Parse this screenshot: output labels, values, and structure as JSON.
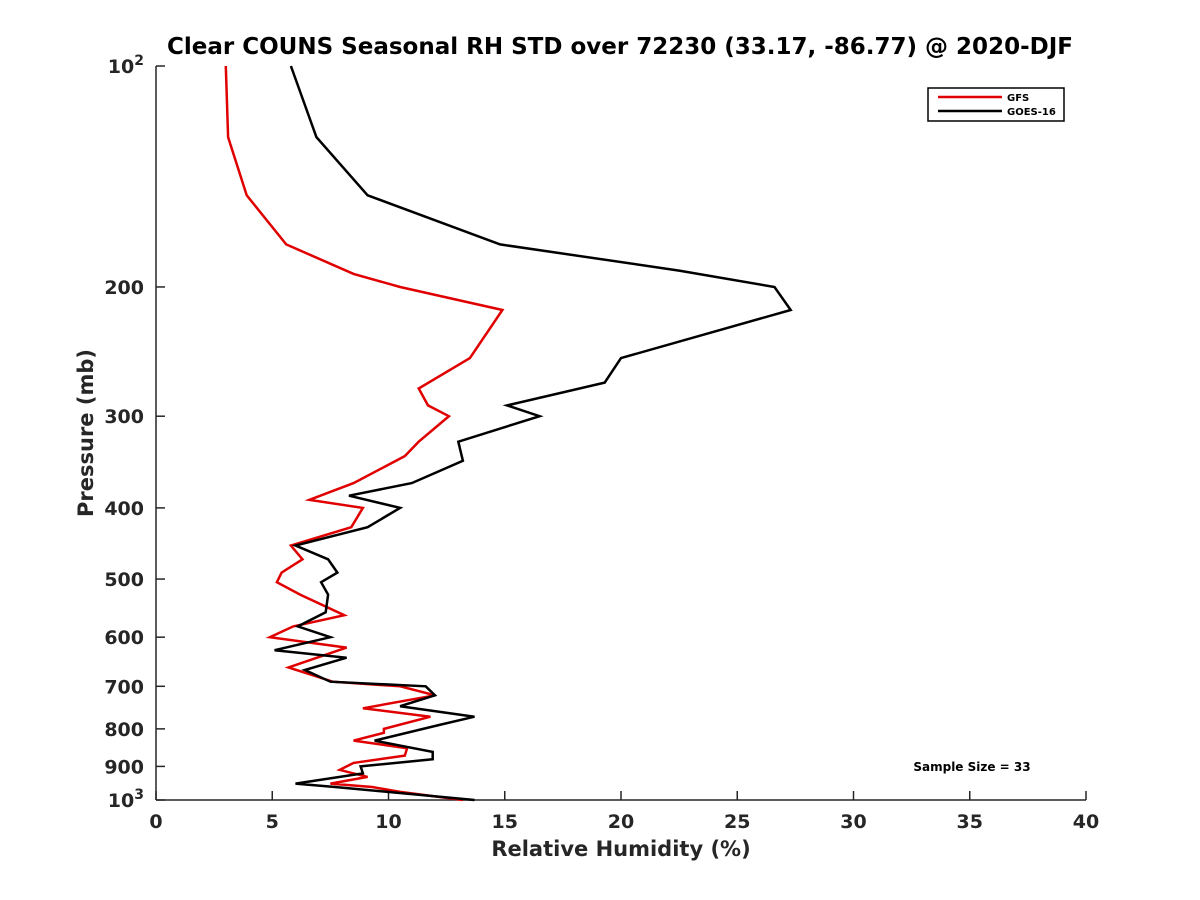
{
  "chart_data": {
    "type": "line",
    "title": "Clear COUNS Seasonal RH STD over 72230 (33.17, -86.77) @ 2020-DJF",
    "xlabel": "Relative Humidity (%)",
    "ylabel": "Pressure (mb)",
    "xlim": [
      0,
      40
    ],
    "ylim": [
      100,
      1000
    ],
    "yscale": "log",
    "y_reversed": true,
    "x_ticks": [
      0,
      5,
      10,
      15,
      20,
      25,
      30,
      35,
      40
    ],
    "x_tick_labels": [
      "0",
      "5",
      "10",
      "15",
      "20",
      "25",
      "30",
      "35",
      "40"
    ],
    "y_ticks": [
      200,
      300,
      400,
      500,
      600,
      700,
      800,
      900
    ],
    "y_tick_labels": [
      "200",
      "300",
      "400",
      "500",
      "600",
      "700",
      "800",
      "900"
    ],
    "y_end_labels": [
      {
        "value": 100,
        "base": "10",
        "exp": "2"
      },
      {
        "value": 1000,
        "base": "10",
        "exp": "3"
      }
    ],
    "grid": false,
    "legend_position": "top-right",
    "annotation": "Sample Size = 33",
    "series": [
      {
        "name": "GFS",
        "color": "#e00000",
        "points": [
          [
            3.0,
            100
          ],
          [
            3.1,
            125
          ],
          [
            3.9,
            150
          ],
          [
            5.6,
            175
          ],
          [
            8.5,
            192
          ],
          [
            10.5,
            200
          ],
          [
            14.9,
            215
          ],
          [
            13.5,
            250
          ],
          [
            11.3,
            275
          ],
          [
            11.7,
            290
          ],
          [
            12.6,
            300
          ],
          [
            11.3,
            325
          ],
          [
            10.7,
            340
          ],
          [
            8.5,
            370
          ],
          [
            6.6,
            390
          ],
          [
            8.9,
            400
          ],
          [
            8.4,
            425
          ],
          [
            5.8,
            450
          ],
          [
            6.3,
            470
          ],
          [
            5.4,
            490
          ],
          [
            5.2,
            505
          ],
          [
            6.2,
            525
          ],
          [
            8.1,
            560
          ],
          [
            5.9,
            580
          ],
          [
            4.9,
            600
          ],
          [
            8.2,
            620
          ],
          [
            5.7,
            660
          ],
          [
            7.6,
            690
          ],
          [
            10.5,
            700
          ],
          [
            12.0,
            720
          ],
          [
            8.9,
            750
          ],
          [
            11.8,
            770
          ],
          [
            9.8,
            800
          ],
          [
            9.8,
            810
          ],
          [
            8.5,
            830
          ],
          [
            10.8,
            850
          ],
          [
            10.7,
            870
          ],
          [
            8.5,
            890
          ],
          [
            7.9,
            910
          ],
          [
            9.1,
            930
          ],
          [
            7.5,
            950
          ],
          [
            9.3,
            960
          ],
          [
            10.5,
            975
          ],
          [
            13.2,
            1000
          ]
        ]
      },
      {
        "name": "GOES-16",
        "color": "#000000",
        "points": [
          [
            5.8,
            100
          ],
          [
            6.9,
            125
          ],
          [
            9.1,
            150
          ],
          [
            14.8,
            175
          ],
          [
            22.5,
            190
          ],
          [
            26.6,
            200
          ],
          [
            27.3,
            215
          ],
          [
            20.0,
            250
          ],
          [
            19.3,
            270
          ],
          [
            15.1,
            290
          ],
          [
            16.5,
            300
          ],
          [
            13.0,
            325
          ],
          [
            13.2,
            345
          ],
          [
            11.0,
            370
          ],
          [
            8.3,
            385
          ],
          [
            10.5,
            400
          ],
          [
            9.1,
            425
          ],
          [
            6.0,
            450
          ],
          [
            7.4,
            470
          ],
          [
            7.8,
            490
          ],
          [
            7.1,
            505
          ],
          [
            7.4,
            525
          ],
          [
            7.3,
            555
          ],
          [
            6.1,
            580
          ],
          [
            7.5,
            600
          ],
          [
            5.1,
            625
          ],
          [
            8.2,
            640
          ],
          [
            6.4,
            665
          ],
          [
            7.5,
            690
          ],
          [
            11.6,
            700
          ],
          [
            12.0,
            720
          ],
          [
            10.5,
            745
          ],
          [
            13.7,
            770
          ],
          [
            12.2,
            790
          ],
          [
            9.4,
            830
          ],
          [
            11.9,
            860
          ],
          [
            11.9,
            880
          ],
          [
            8.8,
            900
          ],
          [
            8.9,
            920
          ],
          [
            6.0,
            950
          ],
          [
            7.7,
            960
          ],
          [
            13.7,
            1000
          ]
        ]
      }
    ]
  }
}
